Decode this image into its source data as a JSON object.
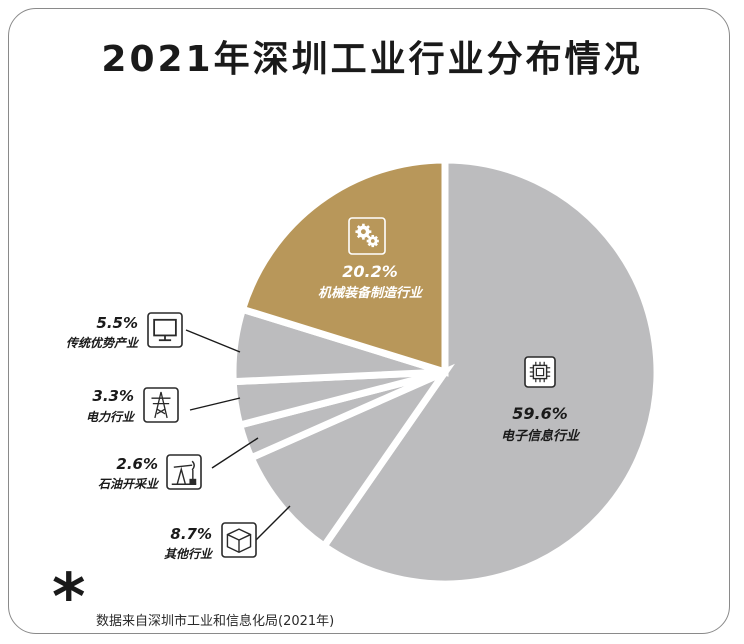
{
  "chart_data": {
    "type": "pie",
    "title": "2021年深圳工业行业分布情况",
    "slices": [
      {
        "label": "电子信息行业",
        "value": 59.6,
        "display": "59.6%",
        "color": "#bcbcbe",
        "icon": "chip-icon"
      },
      {
        "label": "其他行业",
        "value": 8.7,
        "display": "8.7%",
        "color": "#bcbcbe",
        "icon": "box-icon"
      },
      {
        "label": "石油开采业",
        "value": 2.6,
        "display": "2.6%",
        "color": "#bcbcbe",
        "icon": "oil-pump-icon"
      },
      {
        "label": "电力行业",
        "value": 3.3,
        "display": "3.3%",
        "color": "#bcbcbe",
        "icon": "power-tower-icon"
      },
      {
        "label": "传统优势产业",
        "value": 5.5,
        "display": "5.5%",
        "color": "#bcbcbe",
        "icon": "monitor-icon"
      },
      {
        "label": "机械装备制造行业",
        "value": 20.2,
        "display": "20.2%",
        "color": "#b8975a",
        "icon": "gears-icon"
      }
    ]
  },
  "footer": {
    "mark": "*",
    "source": "数据来自深圳市工业和信息化局(2021年)"
  }
}
